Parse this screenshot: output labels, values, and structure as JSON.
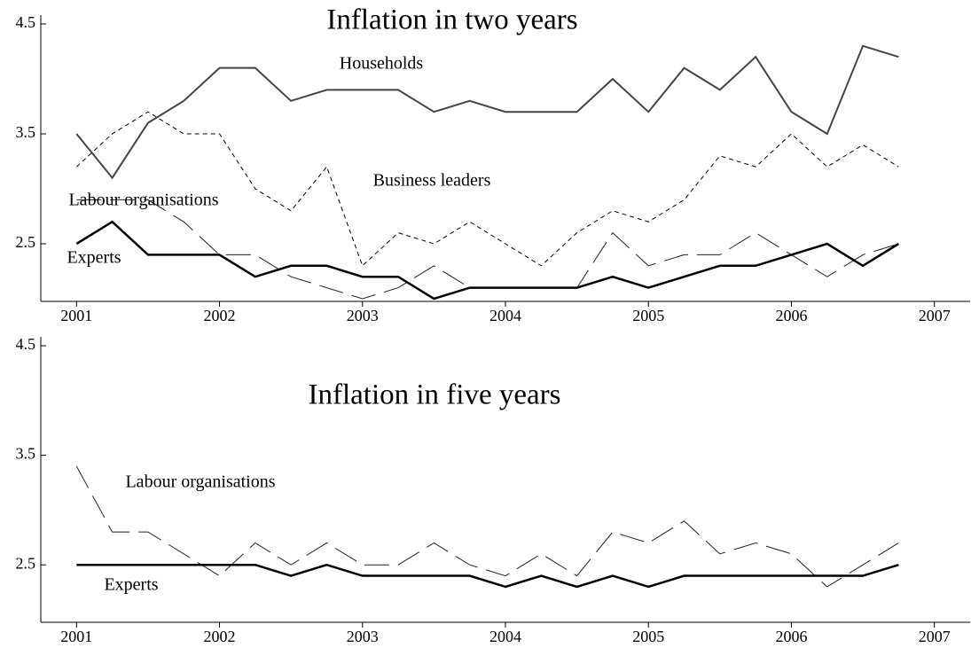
{
  "chart_data": [
    {
      "type": "line",
      "title": "Inflation in two years",
      "x": [
        2001,
        2001.25,
        2001.5,
        2001.75,
        2002,
        2002.25,
        2002.5,
        2002.75,
        2003,
        2003.25,
        2003.5,
        2003.75,
        2004,
        2004.25,
        2004.5,
        2004.75,
        2005,
        2005.25,
        2005.5,
        2005.75,
        2006,
        2006.25,
        2006.5,
        2006.75
      ],
      "xlim": [
        2000.75,
        2007.25
      ],
      "xticks": [
        2001,
        2002,
        2003,
        2004,
        2005,
        2006,
        2007
      ],
      "ylim": [
        2,
        4.5
      ],
      "yticks": [
        2.5,
        3.5,
        4.5
      ],
      "series": [
        {
          "name": "Households",
          "color": "#444444",
          "line_style": "solid",
          "linewidth": 2,
          "values": [
            3.5,
            3.1,
            3.6,
            3.8,
            4.1,
            4.1,
            3.8,
            3.9,
            3.9,
            3.9,
            3.7,
            3.8,
            3.7,
            3.7,
            3.7,
            4.0,
            3.7,
            4.1,
            3.9,
            4.2,
            3.7,
            3.5,
            4.3,
            4.2
          ]
        },
        {
          "name": "Business leaders",
          "color": "#000000",
          "line_style": "dashed",
          "linewidth": 1,
          "values": [
            3.2,
            3.5,
            3.7,
            3.5,
            3.5,
            3.0,
            2.8,
            3.2,
            2.3,
            2.6,
            2.5,
            2.7,
            2.5,
            2.3,
            2.6,
            2.8,
            2.7,
            2.9,
            3.3,
            3.2,
            3.5,
            3.2,
            3.4,
            3.2
          ]
        },
        {
          "name": "Labour organisations",
          "color": "#222222",
          "line_style": "long-dashed",
          "linewidth": 1,
          "values": [
            2.9,
            2.9,
            2.9,
            2.7,
            2.4,
            2.4,
            2.2,
            2.1,
            2.0,
            2.1,
            2.3,
            2.1,
            2.1,
            2.1,
            2.1,
            2.6,
            2.3,
            2.4,
            2.4,
            2.6,
            2.4,
            2.2,
            2.4,
            2.5
          ]
        },
        {
          "name": "Experts",
          "color": "#000000",
          "line_style": "solid",
          "linewidth": 2.5,
          "values": [
            2.5,
            2.7,
            2.4,
            2.4,
            2.4,
            2.2,
            2.3,
            2.3,
            2.2,
            2.2,
            2.0,
            2.1,
            2.1,
            2.1,
            2.1,
            2.2,
            2.1,
            2.2,
            2.3,
            2.3,
            2.4,
            2.5,
            2.3,
            2.5
          ]
        }
      ]
    },
    {
      "type": "line",
      "title": "Inflation in five years",
      "x": [
        2001,
        2001.25,
        2001.5,
        2001.75,
        2002,
        2002.25,
        2002.5,
        2002.75,
        2003,
        2003.25,
        2003.5,
        2003.75,
        2004,
        2004.25,
        2004.5,
        2004.75,
        2005,
        2005.25,
        2005.5,
        2005.75,
        2006,
        2006.25,
        2006.5,
        2006.75
      ],
      "xlim": [
        2000.75,
        2007.25
      ],
      "xticks": [
        2001,
        2002,
        2003,
        2004,
        2005,
        2006,
        2007
      ],
      "ylim": [
        2,
        4.5
      ],
      "yticks": [
        2.5,
        3.5,
        4.5
      ],
      "series": [
        {
          "name": "Labour organisations",
          "color": "#222222",
          "line_style": "long-dashed",
          "linewidth": 1,
          "values": [
            3.4,
            2.8,
            2.8,
            2.6,
            2.4,
            2.7,
            2.5,
            2.7,
            2.5,
            2.5,
            2.7,
            2.5,
            2.4,
            2.6,
            2.4,
            2.8,
            2.7,
            2.9,
            2.6,
            2.7,
            2.6,
            2.3,
            2.5,
            2.7
          ]
        },
        {
          "name": "Experts",
          "color": "#000000",
          "line_style": "solid",
          "linewidth": 2.5,
          "values": [
            2.5,
            2.5,
            2.5,
            2.5,
            2.5,
            2.5,
            2.4,
            2.5,
            2.4,
            2.4,
            2.4,
            2.4,
            2.3,
            2.4,
            2.3,
            2.4,
            2.3,
            2.4,
            2.4,
            2.4,
            2.4,
            2.4,
            2.4,
            2.5
          ]
        }
      ]
    }
  ]
}
